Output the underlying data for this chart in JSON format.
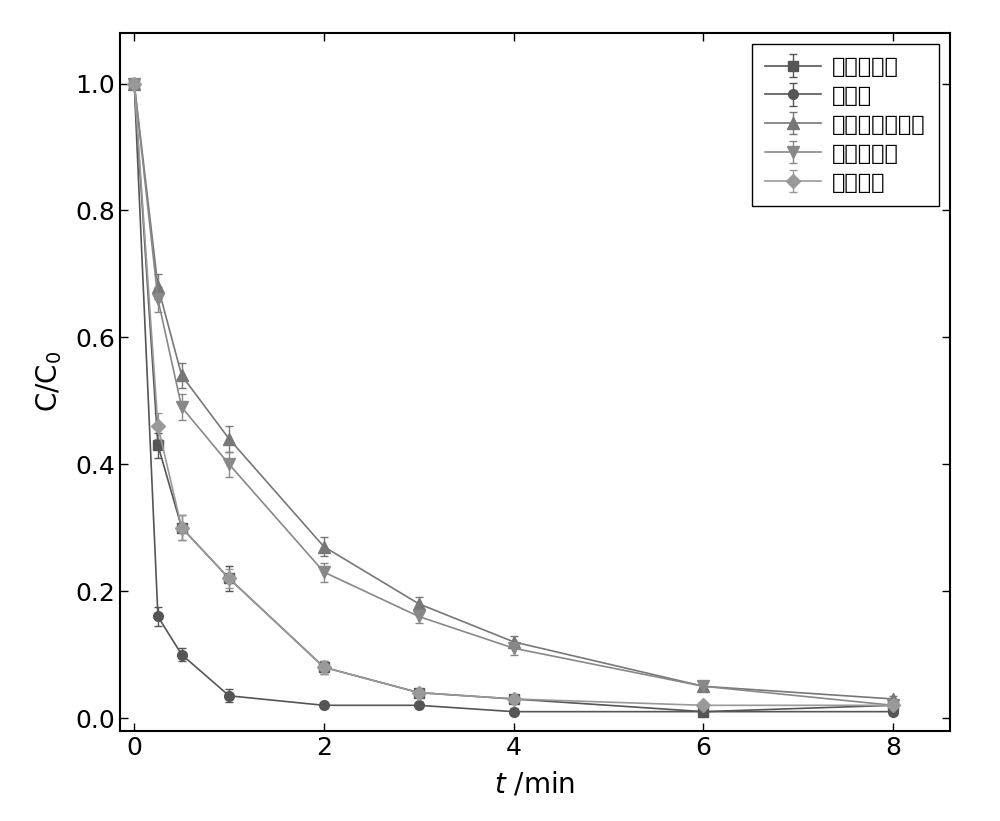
{
  "series": [
    {
      "label": "确酸根离子",
      "color": "#555555",
      "marker": "s",
      "markersize": 7,
      "x": [
        0,
        0.25,
        0.5,
        1,
        2,
        3,
        4,
        6,
        8
      ],
      "y": [
        1.0,
        0.43,
        0.3,
        0.22,
        0.08,
        0.04,
        0.03,
        0.01,
        0.02
      ],
      "yerr": [
        0.0,
        0.02,
        0.02,
        0.02,
        0.01,
        0.005,
        0.005,
        0.005,
        0.005
      ]
    },
    {
      "label": "氯离子",
      "color": "#555555",
      "marker": "o",
      "markersize": 7,
      "x": [
        0,
        0.25,
        0.5,
        1,
        2,
        3,
        4,
        6,
        8
      ],
      "y": [
        1.0,
        0.16,
        0.1,
        0.035,
        0.02,
        0.02,
        0.01,
        0.01,
        0.01
      ],
      "yerr": [
        0.0,
        0.015,
        0.01,
        0.01,
        0.005,
        0.005,
        0.005,
        0.005,
        0.005
      ]
    },
    {
      "label": "磷酸二氢根离子",
      "color": "#777777",
      "marker": "^",
      "markersize": 8,
      "x": [
        0,
        0.25,
        0.5,
        1,
        2,
        3,
        4,
        6,
        8
      ],
      "y": [
        1.0,
        0.68,
        0.54,
        0.44,
        0.27,
        0.18,
        0.12,
        0.05,
        0.03
      ],
      "yerr": [
        0.0,
        0.02,
        0.02,
        0.02,
        0.015,
        0.01,
        0.01,
        0.005,
        0.005
      ]
    },
    {
      "label": "硫酸根离子",
      "color": "#888888",
      "marker": "v",
      "markersize": 8,
      "x": [
        0,
        0.25,
        0.5,
        1,
        2,
        3,
        4,
        6,
        8
      ],
      "y": [
        1.0,
        0.66,
        0.49,
        0.4,
        0.23,
        0.16,
        0.11,
        0.05,
        0.02
      ],
      "yerr": [
        0.0,
        0.02,
        0.02,
        0.02,
        0.015,
        0.01,
        0.01,
        0.005,
        0.005
      ]
    },
    {
      "label": "空白对照",
      "color": "#999999",
      "marker": "D",
      "markersize": 7,
      "x": [
        0,
        0.25,
        0.5,
        1,
        2,
        3,
        4,
        6,
        8
      ],
      "y": [
        1.0,
        0.46,
        0.3,
        0.22,
        0.08,
        0.04,
        0.03,
        0.02,
        0.02
      ],
      "yerr": [
        0.0,
        0.02,
        0.02,
        0.015,
        0.01,
        0.005,
        0.005,
        0.005,
        0.005
      ]
    }
  ],
  "xlabel": "t /min",
  "ylabel": "C/C₀",
  "xlim": [
    -0.15,
    8.6
  ],
  "ylim": [
    -0.02,
    1.08
  ],
  "xticks": [
    0,
    2,
    4,
    6,
    8
  ],
  "yticks": [
    0.0,
    0.2,
    0.4,
    0.6,
    0.8,
    1.0
  ],
  "legend_loc": "upper right",
  "background_color": "#ffffff",
  "linewidth": 1.2,
  "tick_fontsize": 18,
  "label_fontsize": 20,
  "legend_fontsize": 16
}
